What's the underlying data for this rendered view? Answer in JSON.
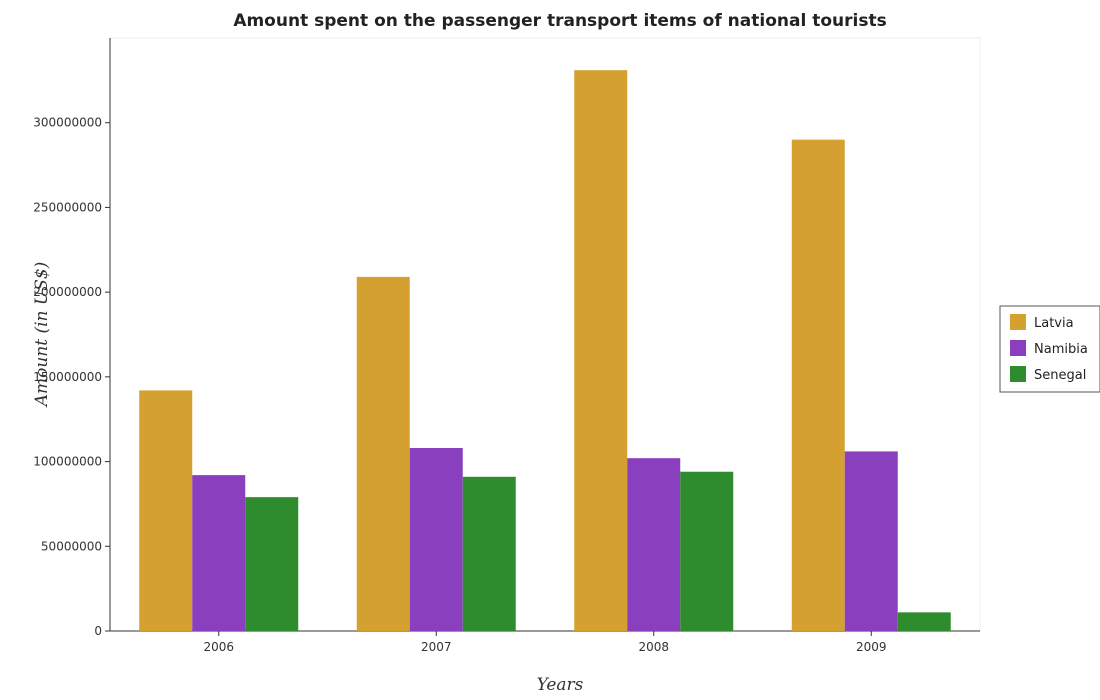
{
  "chart_data": {
    "type": "bar",
    "title": "Amount spent on the passenger transport items of national tourists",
    "xlabel": "Years",
    "ylabel": "Amount (in US$)",
    "categories": [
      "2006",
      "2007",
      "2008",
      "2009"
    ],
    "series": [
      {
        "name": "Latvia",
        "color": "#d4a030",
        "values": [
          142000000,
          209000000,
          331000000,
          290000000
        ]
      },
      {
        "name": "Namibia",
        "color": "#8a3fbf",
        "values": [
          92000000,
          108000000,
          102000000,
          106000000
        ]
      },
      {
        "name": "Senegal",
        "color": "#2e8b2e",
        "values": [
          79000000,
          91000000,
          94000000,
          11000000
        ]
      }
    ],
    "ylim": [
      0,
      350000000
    ],
    "yticks": [
      0,
      50000000,
      100000000,
      150000000,
      200000000,
      250000000,
      300000000
    ],
    "ytick_labels": [
      "0",
      "50000000",
      "100000000",
      "150000000",
      "200000000",
      "250000000",
      "300000000"
    ],
    "grid": false,
    "legend_position": "right"
  }
}
